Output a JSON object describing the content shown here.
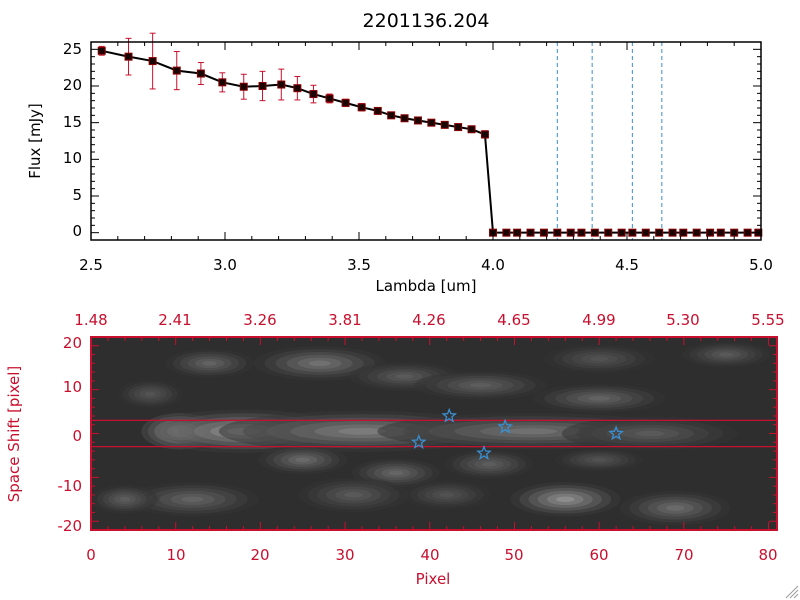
{
  "chart_data": [
    {
      "type": "line",
      "title": "2201136.204",
      "xlabel": "Lambda [um]",
      "ylabel": "Flux [mJy]",
      "xlim": [
        2.5,
        5.0
      ],
      "ylim": [
        -1,
        26
      ],
      "x_ticks": [
        "2.5",
        "3.0",
        "3.5",
        "4.0",
        "4.5",
        "5.0"
      ],
      "y_ticks": [
        "0",
        "5",
        "10",
        "15",
        "20",
        "25"
      ],
      "series": [
        {
          "name": "flux",
          "x": [
            2.54,
            2.64,
            2.73,
            2.82,
            2.91,
            2.99,
            3.07,
            3.14,
            3.21,
            3.27,
            3.33,
            3.39,
            3.45,
            3.51,
            3.57,
            3.62,
            3.67,
            3.72,
            3.77,
            3.82,
            3.87,
            3.92,
            3.97,
            4.0,
            4.05,
            4.09,
            4.14,
            4.19,
            4.24,
            4.29,
            4.33,
            4.38,
            4.43,
            4.48,
            4.52,
            4.57,
            4.62,
            4.67,
            4.71,
            4.76,
            4.81,
            4.85,
            4.9,
            4.95,
            4.99
          ],
          "y": [
            24.8,
            24.0,
            23.4,
            22.1,
            21.7,
            20.5,
            19.9,
            20.0,
            20.2,
            19.7,
            18.9,
            18.3,
            17.7,
            17.1,
            16.6,
            16.0,
            15.6,
            15.3,
            15.0,
            14.7,
            14.4,
            14.1,
            13.4,
            0.0,
            0.0,
            0.0,
            0.0,
            0.0,
            0.0,
            0.0,
            0.0,
            0.0,
            0.0,
            0.0,
            0.0,
            0.0,
            0.0,
            0.0,
            0.0,
            0.0,
            0.0,
            0.0,
            0.0,
            0.0,
            0.0
          ],
          "errors": [
            0.6,
            2.5,
            3.8,
            2.6,
            1.5,
            1.3,
            1.7,
            2.0,
            2.1,
            1.6,
            1.2,
            0.6,
            0.5,
            0.5,
            0.4,
            0.4,
            0.4,
            0.4,
            0.4,
            0.4,
            0.4,
            0.4,
            0.5,
            0,
            0,
            0,
            0,
            0,
            0,
            0,
            0,
            0,
            0,
            0,
            0,
            0,
            0,
            0,
            0,
            0,
            0,
            0,
            0,
            0,
            0
          ]
        }
      ],
      "vlines": [
        4.24,
        4.37,
        4.52,
        4.63
      ],
      "hline_y": 0
    },
    {
      "type": "heatmap",
      "xlabel": "Pixel",
      "ylabel": "Space Shift [pixel]",
      "xlim": [
        0,
        81
      ],
      "ylim": [
        -22,
        22
      ],
      "x_ticks": [
        "0",
        "10",
        "20",
        "30",
        "40",
        "50",
        "60",
        "70",
        "80"
      ],
      "y_ticks": [
        "-20",
        "-10",
        "0",
        "10",
        "20"
      ],
      "top_axis_ticks": [
        "1.48",
        "2.41",
        "3.26",
        "3.81",
        "4.26",
        "4.65",
        "4.99",
        "5.30",
        "5.55"
      ],
      "aperture_lines": [
        3,
        -3
      ],
      "star_markers": [
        {
          "x": 38.7,
          "y": -2.0
        },
        {
          "x": 42.3,
          "y": 4.0
        },
        {
          "x": 46.4,
          "y": -4.5
        },
        {
          "x": 48.9,
          "y": 1.5
        },
        {
          "x": 62.0,
          "y": 0.0
        }
      ],
      "blobs": [
        {
          "x": 10.5,
          "y": 0.5,
          "sx": 3.5,
          "sy": 3.2,
          "a": 1.0
        },
        {
          "x": 18,
          "y": 0.5,
          "sx": 9,
          "sy": 3.8,
          "a": 0.42
        },
        {
          "x": 32,
          "y": 0.5,
          "sx": 13,
          "sy": 3.6,
          "a": 0.33
        },
        {
          "x": 52,
          "y": 0.5,
          "sx": 14,
          "sy": 3.2,
          "a": 0.28
        },
        {
          "x": 66,
          "y": 0.0,
          "sx": 8,
          "sy": 3.0,
          "a": 0.18
        },
        {
          "x": 27,
          "y": 16,
          "sx": 6,
          "sy": 3.0,
          "a": 0.28
        },
        {
          "x": 14,
          "y": 16,
          "sx": 4,
          "sy": 2.5,
          "a": 0.22
        },
        {
          "x": 7,
          "y": 9,
          "sx": 3,
          "sy": 2.5,
          "a": 0.16
        },
        {
          "x": 37,
          "y": 13,
          "sx": 5,
          "sy": 2.5,
          "a": 0.18
        },
        {
          "x": 46,
          "y": 11,
          "sx": 6,
          "sy": 2.5,
          "a": 0.2
        },
        {
          "x": 60,
          "y": 8,
          "sx": 6,
          "sy": 2.5,
          "a": 0.22
        },
        {
          "x": 60,
          "y": 17,
          "sx": 5,
          "sy": 2.5,
          "a": 0.15
        },
        {
          "x": 75,
          "y": 18,
          "sx": 4,
          "sy": 2.2,
          "a": 0.18
        },
        {
          "x": 25,
          "y": -6,
          "sx": 4,
          "sy": 2.5,
          "a": 0.25
        },
        {
          "x": 36,
          "y": -9,
          "sx": 4,
          "sy": 2.5,
          "a": 0.24
        },
        {
          "x": 47,
          "y": -7,
          "sx": 4,
          "sy": 2.5,
          "a": 0.2
        },
        {
          "x": 56,
          "y": -15,
          "sx": 5,
          "sy": 3.0,
          "a": 0.4
        },
        {
          "x": 69,
          "y": -17,
          "sx": 5,
          "sy": 3.0,
          "a": 0.25
        },
        {
          "x": 12,
          "y": -15,
          "sx": 6,
          "sy": 3.0,
          "a": 0.22
        },
        {
          "x": 4,
          "y": -15,
          "sx": 3,
          "sy": 2.5,
          "a": 0.2
        },
        {
          "x": 31,
          "y": -14,
          "sx": 5,
          "sy": 3.0,
          "a": 0.18
        },
        {
          "x": 42,
          "y": -14,
          "sx": 4,
          "sy": 2.5,
          "a": 0.15
        },
        {
          "x": 60,
          "y": -6,
          "sx": 4,
          "sy": 2.0,
          "a": 0.15
        }
      ]
    }
  ]
}
